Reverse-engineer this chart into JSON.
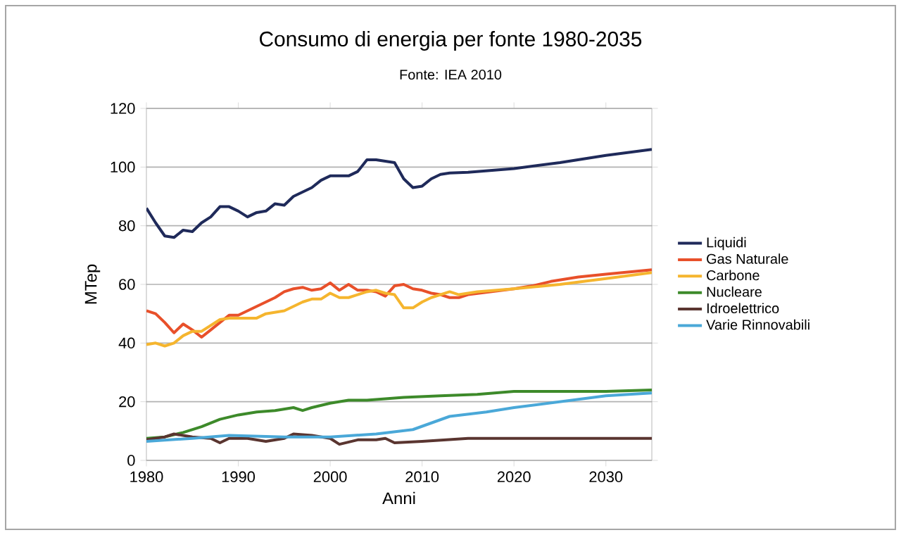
{
  "chart_data": {
    "type": "line",
    "title": "Consumo di energia per fonte 1980-2035",
    "subtitle": "Fonte: IEA 2010",
    "xlabel": "Anni",
    "ylabel": "MTep",
    "xlim": [
      1980,
      2035
    ],
    "ylim": [
      0,
      120
    ],
    "xticks": [
      1980,
      1990,
      2000,
      2010,
      2020,
      2030
    ],
    "yticks": [
      0,
      20,
      40,
      60,
      80,
      100,
      120
    ],
    "grid": "y",
    "legend": "right",
    "marker": "none",
    "line_style": "solid",
    "series": [
      {
        "name": "Liquidi",
        "color": "#1f2a5a",
        "x": [
          1980,
          1981,
          1982,
          1983,
          1984,
          1985,
          1986,
          1987,
          1988,
          1989,
          1990,
          1991,
          1992,
          1993,
          1994,
          1995,
          1996,
          1997,
          1998,
          1999,
          2000,
          2001,
          2002,
          2003,
          2004,
          2005,
          2006,
          2007,
          2008,
          2009,
          2010,
          2011,
          2012,
          2013,
          2015,
          2020,
          2025,
          2030,
          2035
        ],
        "values": [
          86,
          81,
          76.5,
          76,
          78.5,
          78,
          81,
          83,
          86.5,
          86.5,
          85,
          83,
          84.5,
          85,
          87.5,
          87,
          90,
          91.5,
          93,
          95.5,
          97,
          97,
          97,
          98.5,
          102.5,
          102.5,
          102,
          101.5,
          96,
          93,
          93.5,
          96,
          97.5,
          98,
          98.2,
          99.5,
          101.5,
          104,
          106
        ]
      },
      {
        "name": "Gas Naturale",
        "color": "#e8502a",
        "x": [
          1980,
          1981,
          1982,
          1983,
          1984,
          1985,
          1986,
          1987,
          1988,
          1989,
          1990,
          1991,
          1992,
          1993,
          1994,
          1995,
          1996,
          1997,
          1998,
          1999,
          2000,
          2001,
          2002,
          2003,
          2004,
          2005,
          2006,
          2007,
          2008,
          2009,
          2010,
          2011,
          2012,
          2013,
          2014,
          2015,
          2020,
          2022,
          2024,
          2027,
          2030,
          2035
        ],
        "values": [
          51,
          50,
          47,
          43.5,
          46.5,
          44.5,
          42,
          44.5,
          47,
          49.5,
          49.5,
          51,
          52.5,
          54,
          55.5,
          57.5,
          58.5,
          59,
          58,
          58.5,
          60.5,
          58,
          60,
          58,
          58,
          57.5,
          56,
          59.5,
          60,
          58.5,
          58,
          57,
          56.5,
          55.5,
          55.5,
          56.5,
          58.5,
          59.5,
          61,
          62.5,
          63.5,
          65
        ]
      },
      {
        "name": "Carbone",
        "color": "#f5b52e",
        "x": [
          1980,
          1981,
          1982,
          1983,
          1984,
          1985,
          1986,
          1987,
          1988,
          1989,
          1990,
          1991,
          1992,
          1993,
          1994,
          1995,
          1996,
          1997,
          1998,
          1999,
          2000,
          2001,
          2002,
          2003,
          2004,
          2005,
          2006,
          2007,
          2008,
          2009,
          2010,
          2011,
          2012,
          2013,
          2014,
          2016,
          2020,
          2025,
          2030,
          2035
        ],
        "values": [
          39.5,
          40,
          39,
          40,
          42.5,
          44,
          44,
          46,
          48,
          48.5,
          48.5,
          48.5,
          48.5,
          50,
          50.5,
          51,
          52.5,
          54,
          55,
          55,
          57,
          55.5,
          55.5,
          56.5,
          57.5,
          58,
          57,
          56.5,
          52,
          52,
          54,
          55.5,
          56.5,
          57.5,
          56.5,
          57.5,
          58.5,
          60,
          62,
          64
        ]
      },
      {
        "name": "Nucleare",
        "color": "#3d8a2a",
        "x": [
          1980,
          1982,
          1984,
          1986,
          1988,
          1990,
          1992,
          1994,
          1996,
          1997,
          1998,
          2000,
          2002,
          2004,
          2006,
          2008,
          2012,
          2016,
          2020,
          2030,
          2035
        ],
        "values": [
          7.5,
          8,
          9.5,
          11.5,
          14,
          15.5,
          16.5,
          17,
          18,
          17,
          18,
          19.5,
          20.5,
          20.5,
          21,
          21.5,
          22,
          22.5,
          23.5,
          23.5,
          24
        ]
      },
      {
        "name": "Idroelettrico",
        "color": "#5a3530",
        "x": [
          1980,
          1982,
          1983,
          1985,
          1987,
          1988,
          1989,
          1991,
          1993,
          1995,
          1996,
          1998,
          2000,
          2001,
          2003,
          2005,
          2006,
          2007,
          2010,
          2015,
          2035
        ],
        "values": [
          7,
          8,
          9,
          8,
          7.5,
          6,
          7.5,
          7.5,
          6.5,
          7.5,
          9,
          8.5,
          7.5,
          5.5,
          7,
          7,
          7.5,
          6,
          6.5,
          7.5,
          7.5
        ]
      },
      {
        "name": "Varie Rinnovabili",
        "color": "#4aa8d8",
        "x": [
          1980,
          1985,
          1989,
          1995,
          2000,
          2005,
          2009,
          2013,
          2017,
          2020,
          2025,
          2030,
          2035
        ],
        "values": [
          6.5,
          7.5,
          8.5,
          8,
          8,
          9,
          10.5,
          15,
          16.5,
          18,
          20,
          22,
          23
        ]
      }
    ]
  }
}
